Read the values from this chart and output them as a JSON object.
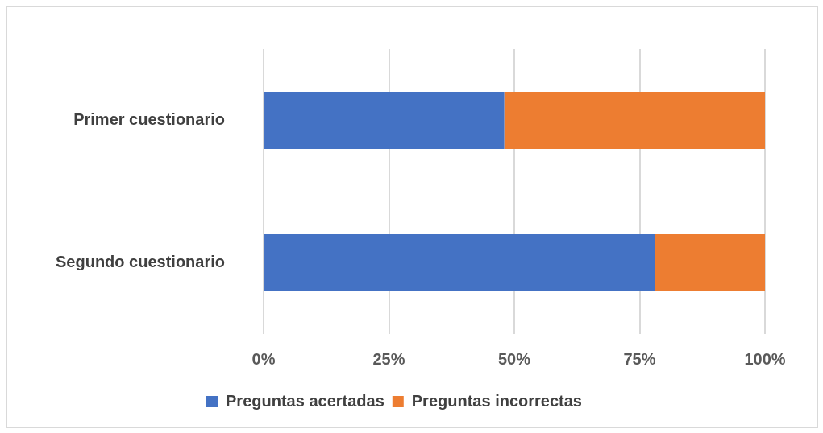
{
  "chart_data": {
    "type": "bar",
    "orientation": "horizontal",
    "stacked": true,
    "categories": [
      "Primer cuestionario",
      "Segundo cuestionario"
    ],
    "series": [
      {
        "name": "Preguntas acertadas",
        "color": "#4472c4",
        "values": [
          48,
          78
        ]
      },
      {
        "name": "Preguntas incorrectas",
        "color": "#ed7d31",
        "values": [
          52,
          22
        ]
      }
    ],
    "xlim": [
      0,
      100
    ],
    "xticks": [
      {
        "value": 0,
        "label": "0%"
      },
      {
        "value": 25,
        "label": "25%"
      },
      {
        "value": 50,
        "label": "50%"
      },
      {
        "value": 75,
        "label": "75%"
      },
      {
        "value": 100,
        "label": "100%"
      }
    ],
    "grid": "x",
    "legend": "bottom"
  }
}
